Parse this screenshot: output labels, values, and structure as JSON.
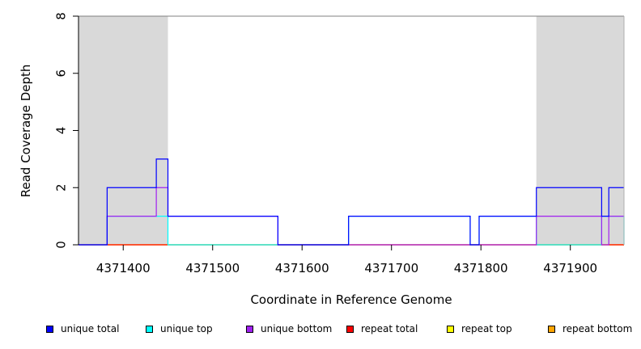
{
  "chart_data": {
    "type": "line",
    "xlabel": "Coordinate in Reference Genome",
    "ylabel": "Read Coverage Depth",
    "xlim": [
      4371350,
      4371960
    ],
    "ylim": [
      0,
      8
    ],
    "xticks": [
      4371400,
      4371500,
      4371600,
      4371700,
      4371800,
      4371900
    ],
    "xtick_labels": [
      "4371400",
      "4371500",
      "4371600",
      "4371700",
      "4371800",
      "4371900"
    ],
    "yticks": [
      0,
      2,
      4,
      6,
      8
    ],
    "ytick_labels": [
      "0",
      "2",
      "4",
      "6",
      "8"
    ],
    "shaded_regions": [
      [
        4371350,
        4371450
      ],
      [
        4371862,
        4371960
      ]
    ],
    "series": [
      {
        "name": "unique total",
        "color": "#0000ff",
        "x": [
          4371350,
          4371382,
          4371437,
          4371450,
          4371573,
          4371652,
          4371788,
          4371798,
          4371862,
          4371935,
          4371943,
          4371960
        ],
        "y": [
          0,
          2,
          3,
          1,
          0,
          1,
          0,
          1,
          2,
          1,
          2,
          2
        ]
      },
      {
        "name": "unique top",
        "color": "#00ffff",
        "x": [
          4371350,
          4371382,
          4371450,
          4371652,
          4371788,
          4371798,
          4371862,
          4371935,
          4371960
        ],
        "y": [
          0,
          1,
          0,
          1,
          0,
          1,
          0,
          1,
          0
        ]
      },
      {
        "name": "unique bottom",
        "color": "#a020f0",
        "x": [
          4371350,
          4371382,
          4371437,
          4371450,
          4371573,
          4371862,
          4371935,
          4371943,
          4371960
        ],
        "y": [
          0,
          1,
          2,
          1,
          0,
          1,
          0,
          1,
          1
        ]
      },
      {
        "name": "repeat total",
        "color": "#ff0000",
        "x": [
          4371350,
          4371960
        ],
        "y": [
          0,
          0
        ]
      },
      {
        "name": "repeat top",
        "color": "#ffff00",
        "x": [
          4371350,
          4371960
        ],
        "y": [
          0,
          0
        ]
      },
      {
        "name": "repeat bottom",
        "color": "#ffa500",
        "x": [
          4371350,
          4371960
        ],
        "y": [
          0,
          0
        ]
      }
    ],
    "legend_position": "bottom",
    "grid": false
  },
  "colors": {
    "shade": "#d9d9d9",
    "axis": "#000000",
    "frame": "#808080"
  }
}
